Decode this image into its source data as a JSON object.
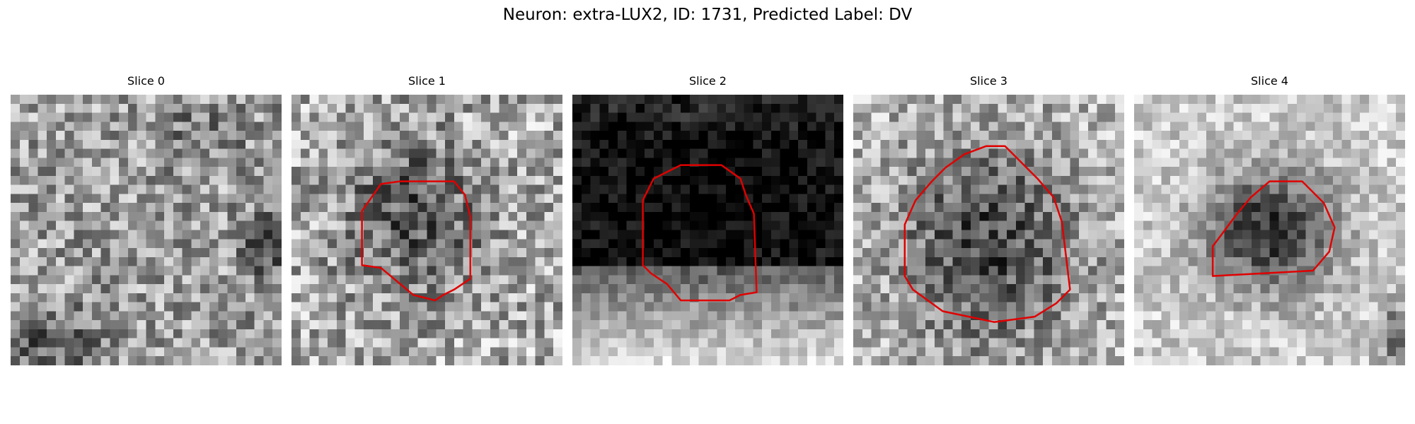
{
  "figure": {
    "title": "Neuron: extra-LUX2, ID: 1731, Predicted Label: DV",
    "contour_color": "#e00000"
  },
  "slices": [
    {
      "label": "Slice 0",
      "has_contour": false
    },
    {
      "label": "Slice 1",
      "has_contour": true
    },
    {
      "label": "Slice 2",
      "has_contour": true
    },
    {
      "label": "Slice 3",
      "has_contour": true
    },
    {
      "label": "Slice 4",
      "has_contour": true
    }
  ]
}
